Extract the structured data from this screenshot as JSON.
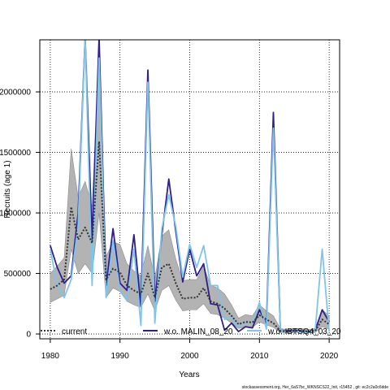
{
  "footer": "stockassessment.org, Her_6aS7bc_WKNSCS22_Init, r15452 , git: ec2c2a0c6dde",
  "chart_data": {
    "type": "line",
    "title": "",
    "xlabel": "Years",
    "ylabel": "Recruits (age 1)",
    "xlim": [
      1978.5,
      2021.5
    ],
    "ylim": [
      -40000,
      2430000
    ],
    "x_ticks": [
      1980,
      1990,
      2000,
      2010,
      2020
    ],
    "x_tick_labels": [
      "1980",
      "1990",
      "2000",
      "2010",
      "2020"
    ],
    "y_ticks": [
      0,
      500000,
      1000000,
      1500000,
      2000000
    ],
    "y_tick_labels": [
      "0",
      "500000",
      "1000000",
      "1500000",
      "2000000"
    ],
    "grid": true,
    "legend_position": "bottom",
    "x": [
      1980,
      1981,
      1982,
      1983,
      1984,
      1985,
      1986,
      1987,
      1988,
      1989,
      1990,
      1991,
      1992,
      1993,
      1994,
      1995,
      1996,
      1997,
      1998,
      1999,
      2000,
      2001,
      2002,
      2003,
      2004,
      2005,
      2006,
      2007,
      2008,
      2009,
      2010,
      2011,
      2012,
      2013,
      2014,
      2015,
      2016,
      2017,
      2018,
      2019,
      2020
    ],
    "series": [
      {
        "name": "current",
        "color": "#333333",
        "dash": "dotted",
        "values": [
          370000,
          400000,
          450000,
          1050000,
          780000,
          880000,
          750000,
          1590000,
          450000,
          540000,
          510000,
          400000,
          360000,
          330000,
          500000,
          300000,
          550000,
          580000,
          420000,
          290000,
          300000,
          300000,
          380000,
          270000,
          250000,
          210000,
          150000,
          80000,
          100000,
          95000,
          155000,
          120000,
          90000,
          25000,
          20000,
          25000,
          25000,
          20000,
          25000,
          120000,
          80000
        ],
        "lower": [
          260000,
          290000,
          320000,
          700000,
          500000,
          580000,
          500000,
          1000000,
          300000,
          380000,
          350000,
          270000,
          240000,
          220000,
          330000,
          190000,
          360000,
          400000,
          280000,
          190000,
          200000,
          200000,
          250000,
          170000,
          160000,
          130000,
          90000,
          45000,
          60000,
          55000,
          100000,
          75000,
          55000,
          12000,
          10000,
          12000,
          12000,
          10000,
          12000,
          60000,
          40000
        ],
        "upper": [
          500000,
          560000,
          630000,
          1530000,
          1130000,
          1260000,
          1050000,
          2300000,
          640000,
          760000,
          740000,
          580000,
          520000,
          480000,
          730000,
          460000,
          810000,
          860000,
          620000,
          440000,
          450000,
          450000,
          560000,
          400000,
          380000,
          330000,
          240000,
          130000,
          160000,
          150000,
          240000,
          190000,
          150000,
          45000,
          35000,
          45000,
          45000,
          35000,
          45000,
          200000,
          150000
        ]
      },
      {
        "name": "w.o. MALIN_08_20",
        "color": "#2e1f8a",
        "dash": "solid",
        "values": [
          730000,
          550000,
          420000,
          480000,
          1000000,
          2450000,
          780000,
          2450000,
          400000,
          870000,
          420000,
          360000,
          820000,
          230000,
          2180000,
          270000,
          820000,
          1280000,
          850000,
          430000,
          700000,
          480000,
          580000,
          250000,
          240000,
          30000,
          90000,
          20000,
          60000,
          50000,
          200000,
          80000,
          1830000,
          30000,
          25000,
          30000,
          25000,
          20000,
          30000,
          200000,
          100000
        ]
      },
      {
        "name": "w.o. IBTSQ4_03_20",
        "color": "#7fc4ea",
        "dash": "solid",
        "values": [
          700000,
          400000,
          300000,
          450000,
          900000,
          2450000,
          400000,
          2280000,
          300000,
          770000,
          360000,
          280000,
          700000,
          70000,
          2080000,
          90000,
          870000,
          1150000,
          890000,
          470000,
          740000,
          550000,
          730000,
          400000,
          400000,
          120000,
          140000,
          60000,
          100000,
          90000,
          260000,
          40000,
          1700000,
          30000,
          20000,
          25000,
          20000,
          15000,
          30000,
          700000,
          20000
        ]
      }
    ]
  }
}
